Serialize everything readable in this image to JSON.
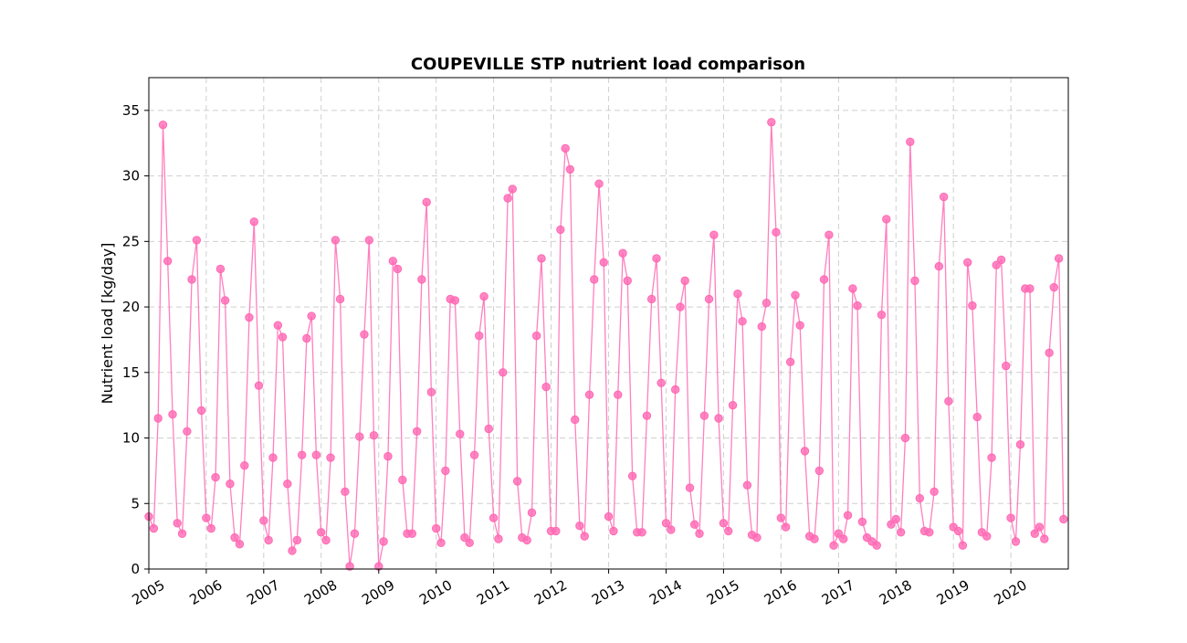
{
  "chart_data": {
    "type": "line",
    "title": "COUPEVILLE STP nutrient load comparison",
    "xlabel": "",
    "ylabel": "Nutrient load [kg/day]",
    "xlim": [
      "2005-01-01",
      "2020-12-31"
    ],
    "ylim": [
      0,
      37.5
    ],
    "x_ticks": [
      "2005",
      "2006",
      "2007",
      "2008",
      "2009",
      "2010",
      "2011",
      "2012",
      "2013",
      "2014",
      "2015",
      "2016",
      "2017",
      "2018",
      "2019",
      "2020"
    ],
    "y_ticks": [
      0,
      5,
      10,
      15,
      20,
      25,
      30,
      35
    ],
    "grid": true,
    "legend": "none",
    "series": [
      {
        "color": "#ff69b4",
        "marker": "circle",
        "x": [
          "2005-01",
          "2005-02",
          "2005-03",
          "2005-04",
          "2005-05",
          "2005-06",
          "2005-07",
          "2005-08",
          "2005-09",
          "2005-10",
          "2005-11",
          "2005-12",
          "2006-01",
          "2006-02",
          "2006-03",
          "2006-04",
          "2006-05",
          "2006-06",
          "2006-07",
          "2006-08",
          "2006-09",
          "2006-10",
          "2006-11",
          "2006-12",
          "2007-01",
          "2007-02",
          "2007-03",
          "2007-04",
          "2007-05",
          "2007-06",
          "2007-07",
          "2007-08",
          "2007-09",
          "2007-10",
          "2007-11",
          "2007-12",
          "2008-01",
          "2008-02",
          "2008-03",
          "2008-04",
          "2008-05",
          "2008-06",
          "2008-07",
          "2008-08",
          "2008-09",
          "2008-10",
          "2008-11",
          "2008-12",
          "2009-01",
          "2009-02",
          "2009-03",
          "2009-04",
          "2009-05",
          "2009-06",
          "2009-07",
          "2009-08",
          "2009-09",
          "2009-10",
          "2009-11",
          "2009-12",
          "2010-01",
          "2010-02",
          "2010-03",
          "2010-04",
          "2010-05",
          "2010-06",
          "2010-07",
          "2010-08",
          "2010-09",
          "2010-10",
          "2010-11",
          "2010-12",
          "2011-01",
          "2011-02",
          "2011-03",
          "2011-04",
          "2011-05",
          "2011-06",
          "2011-07",
          "2011-08",
          "2011-09",
          "2011-10",
          "2011-11",
          "2011-12",
          "2012-01",
          "2012-02",
          "2012-03",
          "2012-04",
          "2012-05",
          "2012-06",
          "2012-07",
          "2012-08",
          "2012-09",
          "2012-10",
          "2012-11",
          "2012-12",
          "2013-01",
          "2013-02",
          "2013-03",
          "2013-04",
          "2013-05",
          "2013-06",
          "2013-07",
          "2013-08",
          "2013-09",
          "2013-10",
          "2013-11",
          "2013-12",
          "2014-01",
          "2014-02",
          "2014-03",
          "2014-04",
          "2014-05",
          "2014-06",
          "2014-07",
          "2014-08",
          "2014-09",
          "2014-10",
          "2014-11",
          "2014-12",
          "2015-01",
          "2015-02",
          "2015-03",
          "2015-04",
          "2015-05",
          "2015-06",
          "2015-07",
          "2015-08",
          "2015-09",
          "2015-10",
          "2015-11",
          "2015-12",
          "2016-01",
          "2016-02",
          "2016-03",
          "2016-04",
          "2016-05",
          "2016-06",
          "2016-07",
          "2016-08",
          "2016-09",
          "2016-10",
          "2016-11",
          "2016-12",
          "2017-01",
          "2017-02",
          "2017-03",
          "2017-04",
          "2017-05",
          "2017-06",
          "2017-07",
          "2017-08",
          "2017-09",
          "2017-10",
          "2017-11",
          "2017-12",
          "2018-01",
          "2018-02",
          "2018-03",
          "2018-04",
          "2018-05",
          "2018-06",
          "2018-07",
          "2018-08",
          "2018-09",
          "2018-10",
          "2018-11",
          "2018-12",
          "2019-01",
          "2019-02",
          "2019-03",
          "2019-04",
          "2019-05",
          "2019-06",
          "2019-07",
          "2019-08",
          "2019-09",
          "2019-10",
          "2019-11",
          "2019-12",
          "2020-01",
          "2020-02",
          "2020-03",
          "2020-04",
          "2020-05",
          "2020-06",
          "2020-07",
          "2020-08",
          "2020-09",
          "2020-10",
          "2020-11",
          "2020-12"
        ],
        "values": [
          4.0,
          3.1,
          11.5,
          33.9,
          23.5,
          11.8,
          3.5,
          2.7,
          10.5,
          22.1,
          25.1,
          12.1,
          3.9,
          3.1,
          7.0,
          22.9,
          20.5,
          6.5,
          2.4,
          1.9,
          7.9,
          19.2,
          26.5,
          14.0,
          3.7,
          2.2,
          8.5,
          18.6,
          17.7,
          6.5,
          1.4,
          2.2,
          8.7,
          17.6,
          19.3,
          8.7,
          2.8,
          2.2,
          8.5,
          25.1,
          20.6,
          5.9,
          0.2,
          2.7,
          10.1,
          17.9,
          25.1,
          10.2,
          0.2,
          2.1,
          8.6,
          23.5,
          22.9,
          6.8,
          2.7,
          2.7,
          10.5,
          22.1,
          28.0,
          13.5,
          3.1,
          2.0,
          7.5,
          20.6,
          20.5,
          10.3,
          2.4,
          2.0,
          8.7,
          17.8,
          20.8,
          10.7,
          3.9,
          2.3,
          15.0,
          28.3,
          29.0,
          6.7,
          2.4,
          2.2,
          4.3,
          17.8,
          23.7,
          13.9,
          2.9,
          2.9,
          25.9,
          32.1,
          30.5,
          11.4,
          3.3,
          2.5,
          13.3,
          22.1,
          29.4,
          23.4,
          4.0,
          2.9,
          13.3,
          24.1,
          22.0,
          7.1,
          2.8,
          2.8,
          11.7,
          20.6,
          23.7,
          14.2,
          3.5,
          3.0,
          13.7,
          20.0,
          22.0,
          6.2,
          3.4,
          2.7,
          11.7,
          20.6,
          25.5,
          11.5,
          3.5,
          2.9,
          12.5,
          21.0,
          18.9,
          6.4,
          2.6,
          2.4,
          18.5,
          20.3,
          34.1,
          25.7,
          3.9,
          3.2,
          15.8,
          20.9,
          18.6,
          9.0,
          2.5,
          2.3,
          7.5,
          22.1,
          25.5,
          1.8,
          2.7,
          2.3,
          4.1,
          21.4,
          20.1,
          3.6,
          2.4,
          2.1,
          1.8,
          19.4,
          26.7,
          3.4,
          3.8,
          2.8,
          10.0,
          32.6,
          22.0,
          5.4,
          2.9,
          2.8,
          5.9,
          23.1,
          28.4,
          12.8,
          3.2,
          2.9,
          1.8,
          23.4,
          20.1,
          11.6,
          2.8,
          2.5,
          8.5,
          23.2,
          23.6,
          15.5,
          3.9,
          2.1,
          9.5,
          21.4,
          21.4,
          2.7,
          3.2,
          2.3,
          16.5,
          21.5,
          23.7,
          3.8
        ]
      }
    ]
  }
}
